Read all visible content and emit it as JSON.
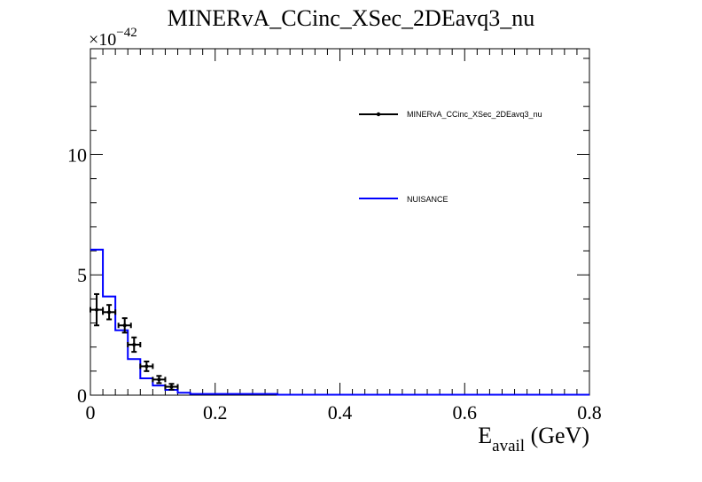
{
  "chart_data": {
    "type": "line",
    "title": "MINERvA_CCinc_XSec_2DEavq3_nu",
    "xlabel": {
      "main": "E",
      "sub": "avail",
      "unit": " (GeV)"
    },
    "ylabel": "",
    "y_exponent": {
      "prefix": "×10",
      "power": "−42"
    },
    "xlim": [
      0,
      0.8
    ],
    "ylim": [
      0,
      14.4
    ],
    "x_ticks": [
      0,
      0.2,
      0.4,
      0.6,
      0.8
    ],
    "x_tick_labels": [
      "0",
      "0.2",
      "0.4",
      "0.6",
      "0.8"
    ],
    "y_ticks": [
      0,
      5,
      10
    ],
    "y_tick_labels": [
      "0",
      "5",
      "10"
    ],
    "legend_placement": "upper-right",
    "series": [
      {
        "name": "MINERvA_CCinc_XSec_2DEavq3_nu",
        "kind": "data-points-with-errors",
        "color": "#000000",
        "points": [
          {
            "x": 0.01,
            "y": 3.55,
            "yerr": 0.65,
            "xerr": 0.01
          },
          {
            "x": 0.03,
            "y": 3.45,
            "yerr": 0.3,
            "xerr": 0.01
          },
          {
            "x": 0.055,
            "y": 2.9,
            "yerr": 0.3,
            "xerr": 0.01
          },
          {
            "x": 0.07,
            "y": 2.1,
            "yerr": 0.3,
            "xerr": 0.01
          },
          {
            "x": 0.09,
            "y": 1.2,
            "yerr": 0.2,
            "xerr": 0.01
          },
          {
            "x": 0.11,
            "y": 0.65,
            "yerr": 0.15,
            "xerr": 0.01
          },
          {
            "x": 0.13,
            "y": 0.35,
            "yerr": 0.12,
            "xerr": 0.01
          }
        ]
      },
      {
        "name": "NUISANCE",
        "kind": "step-histogram",
        "color": "#0000ff",
        "bins": [
          {
            "x0": 0.0,
            "x1": 0.02,
            "y": 6.05
          },
          {
            "x0": 0.02,
            "x1": 0.04,
            "y": 4.1
          },
          {
            "x0": 0.04,
            "x1": 0.06,
            "y": 2.7
          },
          {
            "x0": 0.06,
            "x1": 0.08,
            "y": 1.5
          },
          {
            "x0": 0.08,
            "x1": 0.1,
            "y": 0.7
          },
          {
            "x0": 0.1,
            "x1": 0.12,
            "y": 0.4
          },
          {
            "x0": 0.12,
            "x1": 0.14,
            "y": 0.22
          },
          {
            "x0": 0.14,
            "x1": 0.16,
            "y": 0.1
          },
          {
            "x0": 0.16,
            "x1": 0.3,
            "y": 0.05
          },
          {
            "x0": 0.3,
            "x1": 0.8,
            "y": 0.02
          }
        ]
      }
    ]
  }
}
